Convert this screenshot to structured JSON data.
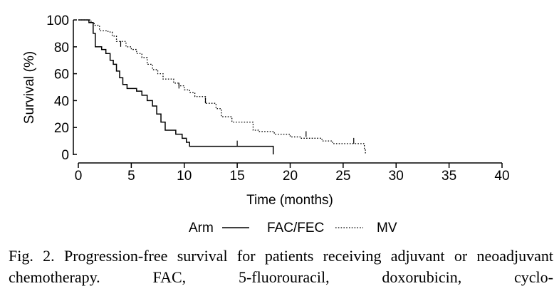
{
  "chart_data": {
    "type": "line",
    "xlabel": "Time (months)",
    "ylabel": "Survival (%)",
    "xlim": [
      0,
      40
    ],
    "ylim": [
      0,
      100
    ],
    "x_ticks": [
      0,
      5,
      10,
      15,
      20,
      25,
      30,
      35,
      40
    ],
    "y_ticks": [
      0,
      20,
      40,
      60,
      80,
      100
    ],
    "legend": {
      "title": "Arm",
      "placement": "bottom"
    },
    "series": [
      {
        "name": "FAC/FEC",
        "line_style": "solid",
        "steps": [
          [
            0,
            100
          ],
          [
            1,
            98
          ],
          [
            1.4,
            90
          ],
          [
            1.6,
            80
          ],
          [
            2.2,
            78
          ],
          [
            2.6,
            75
          ],
          [
            3,
            70
          ],
          [
            3.3,
            67
          ],
          [
            3.6,
            62
          ],
          [
            3.9,
            57
          ],
          [
            4.2,
            52
          ],
          [
            4.6,
            49
          ],
          [
            5.5,
            47
          ],
          [
            6,
            44
          ],
          [
            6.5,
            40
          ],
          [
            7,
            36
          ],
          [
            7.4,
            30
          ],
          [
            7.8,
            24
          ],
          [
            8.2,
            18
          ],
          [
            9.2,
            15
          ],
          [
            9.8,
            12
          ],
          [
            10.2,
            9
          ],
          [
            10.5,
            6
          ],
          [
            18.4,
            6
          ],
          [
            18.4,
            0
          ]
        ],
        "censored": [
          [
            15,
            6
          ]
        ]
      },
      {
        "name": "MV",
        "line_style": "dotted",
        "steps": [
          [
            0,
            100
          ],
          [
            1.2,
            98
          ],
          [
            1.5,
            96
          ],
          [
            2,
            92
          ],
          [
            2.8,
            91
          ],
          [
            3.2,
            88
          ],
          [
            3.6,
            84
          ],
          [
            4.5,
            80
          ],
          [
            5,
            78
          ],
          [
            5.5,
            75
          ],
          [
            6,
            72
          ],
          [
            6.5,
            67
          ],
          [
            7,
            63
          ],
          [
            7.5,
            60
          ],
          [
            8,
            56
          ],
          [
            9,
            53
          ],
          [
            9.5,
            51
          ],
          [
            10,
            48
          ],
          [
            10.5,
            46
          ],
          [
            11,
            43
          ],
          [
            12,
            38
          ],
          [
            13,
            34
          ],
          [
            13.5,
            28
          ],
          [
            14.5,
            24
          ],
          [
            16.5,
            18
          ],
          [
            17,
            17
          ],
          [
            18.5,
            15
          ],
          [
            20,
            13
          ],
          [
            21,
            12
          ],
          [
            23,
            10
          ],
          [
            24,
            8
          ],
          [
            26,
            8
          ],
          [
            27,
            4
          ],
          [
            27.1,
            0
          ]
        ],
        "censored": [
          [
            4,
            80
          ],
          [
            9.5,
            49
          ],
          [
            12,
            38
          ],
          [
            21.5,
            13
          ],
          [
            26,
            8
          ]
        ]
      }
    ]
  },
  "caption": "Fig. 2. Progression-free survival for patients receiving adjuvant or neoadjuvant chemotherapy. FAC, 5-fluorouracil, doxorubicin, cyclo-"
}
